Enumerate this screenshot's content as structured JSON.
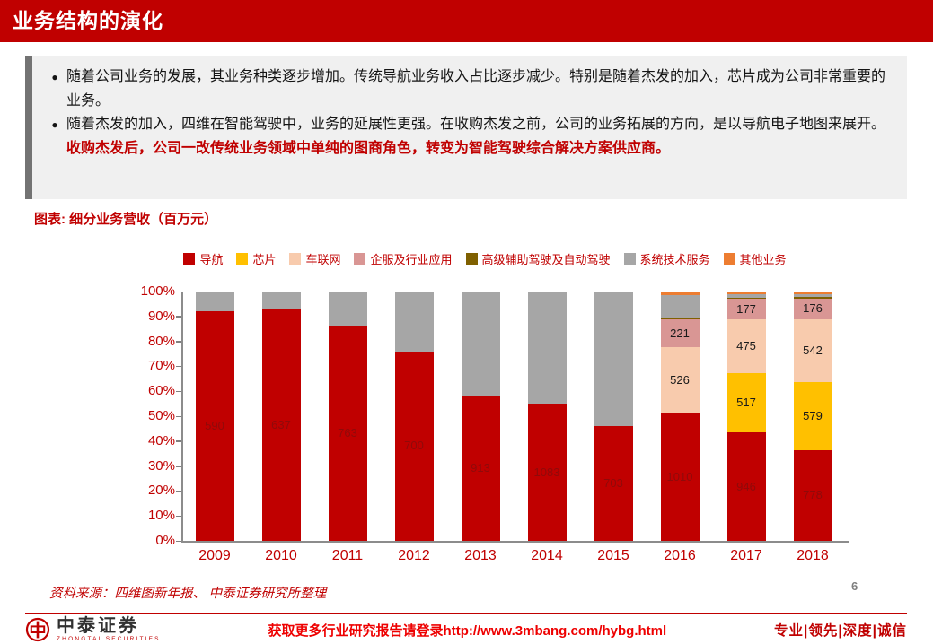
{
  "header": {
    "title": "业务结构的演化"
  },
  "bullets": [
    {
      "text": "随着公司业务的发展，其业务种类逐步增加。传统导航业务收入占比逐步减少。特别是随着杰发的加入，芯片成为公司非常重要的业务。"
    },
    {
      "text": "随着杰发的加入，四维在智能驾驶中，业务的延展性更强。在收购杰发之前，公司的业务拓展的方向，是以导航电子地图来展开。",
      "highlight": "收购杰发后，公司一改传统业务领域中单纯的图商角色，转变为智能驾驶综合解决方案供应商。"
    }
  ],
  "caption": "图表: 细分业务营收（百万元）",
  "chart_data": {
    "type": "bar",
    "subtype": "stacked-100-percent",
    "title": "细分业务营收（百万元）",
    "categories": [
      "2009",
      "2010",
      "2011",
      "2012",
      "2013",
      "2014",
      "2015",
      "2016",
      "2017",
      "2018"
    ],
    "ylim": [
      0,
      100
    ],
    "yticks": [
      "0%",
      "10%",
      "20%",
      "30%",
      "40%",
      "50%",
      "60%",
      "70%",
      "80%",
      "90%",
      "100%"
    ],
    "legend_position": "top",
    "grid": false,
    "series": [
      {
        "name": "导航",
        "color": "#C00000",
        "label_color": "#8F0A0A",
        "values_pct": [
          92,
          93,
          86,
          76,
          58,
          55,
          46,
          51,
          43.4,
          36.5
        ],
        "labels": [
          "590",
          "637",
          "763",
          "700",
          "913",
          "1083",
          "703",
          "1010",
          "946",
          "778"
        ]
      },
      {
        "name": "芯片",
        "color": "#FFC000",
        "label_color": "#1A1A1A",
        "values_pct": [
          0,
          0,
          0,
          0,
          0,
          0,
          0,
          0,
          23.7,
          27.1
        ],
        "labels": [
          "",
          "",
          "",
          "",
          "",
          "",
          "",
          "",
          "517",
          "579"
        ]
      },
      {
        "name": "车联网",
        "color": "#F8CBAD",
        "label_color": "#1A1A1A",
        "values_pct": [
          0,
          0,
          0,
          0,
          0,
          0,
          0,
          26.6,
          21.8,
          25.4
        ],
        "labels": [
          "",
          "",
          "",
          "",
          "",
          "",
          "",
          "526",
          "475",
          "542"
        ]
      },
      {
        "name": "企服及行业应用",
        "color": "#D99694",
        "label_color": "#1A1A1A",
        "values_pct": [
          0,
          0,
          0,
          0,
          0,
          0,
          0,
          11.2,
          8.1,
          8.2
        ],
        "labels": [
          "",
          "",
          "",
          "",
          "",
          "",
          "",
          "221",
          "177",
          "176"
        ]
      },
      {
        "name": "高级辅助驾驶及自动驾驶",
        "color": "#7F6000",
        "label_color": "#1A1A1A",
        "values_pct": [
          0,
          0,
          0,
          0,
          0,
          0,
          0,
          0.5,
          0.5,
          0.5
        ],
        "labels": []
      },
      {
        "name": "系统技术服务",
        "color": "#A6A6A6",
        "label_color": "#1A1A1A",
        "values_pct": [
          8,
          7,
          14,
          24,
          42,
          45,
          54,
          9.2,
          1.5,
          1.3
        ],
        "labels": []
      },
      {
        "name": "其他业务",
        "color": "#ED7D31",
        "label_color": "#1A1A1A",
        "values_pct": [
          0,
          0,
          0,
          0,
          0,
          0,
          0,
          1.5,
          1.0,
          1.0
        ],
        "labels": []
      }
    ]
  },
  "source": "资料来源：四维图新年报、 中泰证券研究所整理",
  "page_number": "6",
  "footer": {
    "brand": "中泰证券",
    "brand_sub": "ZHONGTAI SECURITIES",
    "promo": "获取更多行业研究报告请登录http://www.3mbang.com/hybg.html",
    "slogan": "专业|领先|深度|诚信"
  }
}
